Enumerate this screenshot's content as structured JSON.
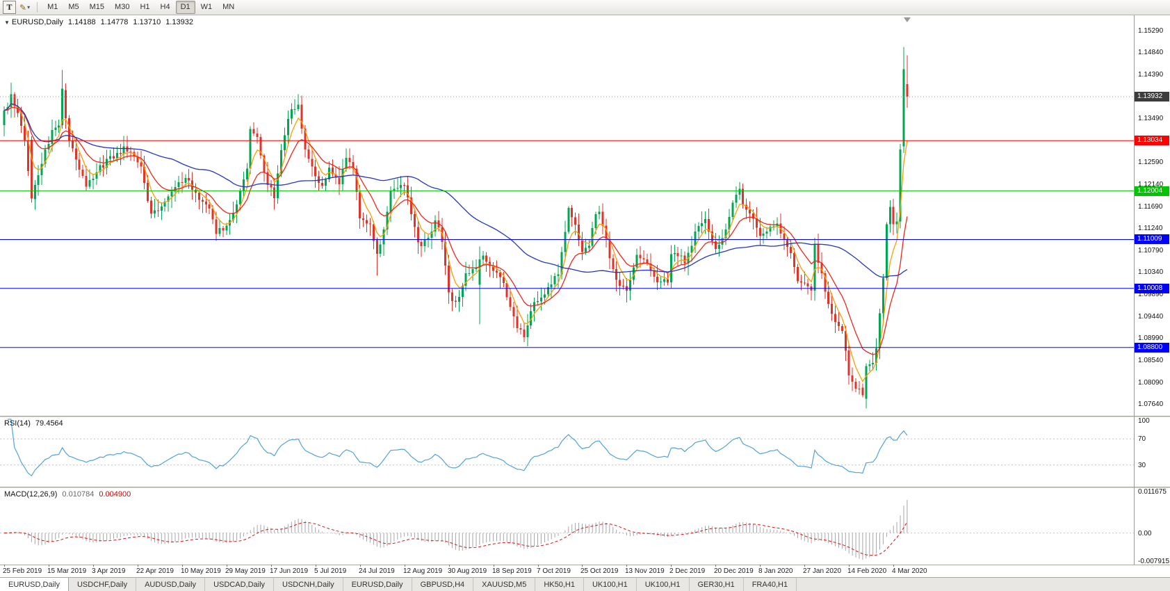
{
  "toolbar": {
    "text_tool_label": "T",
    "pencil_icon": "✎",
    "caret_icon": "▾",
    "timeframes": [
      "M1",
      "M5",
      "M15",
      "M30",
      "H1",
      "H4",
      "D1",
      "W1",
      "MN"
    ],
    "active_timeframe": "D1"
  },
  "chart": {
    "symbol_title": "EURUSD,Daily",
    "open": "1.14188",
    "high": "1.14778",
    "low": "1.13710",
    "close": "1.13932"
  },
  "rsi_panel": {
    "label": "RSI(14)",
    "value": "79.4564",
    "axis_labels": [
      "100",
      "70",
      "30"
    ]
  },
  "macd_panel": {
    "label": "MACD(12,26,9)",
    "main_value": "0.010784",
    "signal_value": "0.004900",
    "axis_labels": [
      "0.011675",
      "0.00",
      "-0.007915"
    ]
  },
  "tabs": [
    "EURUSD,Daily",
    "USDCHF,Daily",
    "AUDUSD,Daily",
    "USDCAD,Daily",
    "USDCNH,Daily",
    "EURUSD,Daily",
    "GBPUSD,H4",
    "XAUUSD,M5",
    "HK50,H1",
    "UK100,H1",
    "UK100,H1",
    "GER30,H1",
    "FRA40,H1"
  ],
  "active_tab": 0,
  "chart_data": {
    "type": "candlestick",
    "title": "EURUSD,Daily",
    "current_ohlc": {
      "open": 1.14188,
      "high": 1.14778,
      "low": 1.1371,
      "close": 1.13932
    },
    "y_axis_ticks": [
      "1.15290",
      "1.14840",
      "1.14390",
      "1.13940",
      "1.13490",
      "1.13040",
      "1.12590",
      "1.12140",
      "1.11690",
      "1.11240",
      "1.10790",
      "1.10340",
      "1.09890",
      "1.09440",
      "1.08990",
      "1.08540",
      "1.08090",
      "1.07640"
    ],
    "price_range": {
      "max": 1.156,
      "min": 1.074
    },
    "x_labels": [
      "25 Feb 2019",
      "15 Mar 2019",
      "3 Apr 2019",
      "22 Apr 2019",
      "10 May 2019",
      "29 May 2019",
      "17 Jun 2019",
      "5 Jul 2019",
      "24 Jul 2019",
      "12 Aug 2019",
      "30 Aug 2019",
      "18 Sep 2019",
      "7 Oct 2019",
      "25 Oct 2019",
      "13 Nov 2019",
      "2 Dec 2019",
      "20 Dec 2019",
      "8 Jan 2020",
      "27 Jan 2020",
      "14 Feb 2020",
      "4 Mar 2020"
    ],
    "candles_per_label": 13,
    "candle_count": 265,
    "close_waypoints": [
      [
        0,
        1.136
      ],
      [
        2,
        1.1392
      ],
      [
        4,
        1.1365
      ],
      [
        6,
        1.1308
      ],
      [
        8,
        1.1185
      ],
      [
        10,
        1.1238
      ],
      [
        14,
        1.1322
      ],
      [
        16,
        1.1338
      ],
      [
        17,
        1.141
      ],
      [
        19,
        1.1298
      ],
      [
        22,
        1.1248
      ],
      [
        24,
        1.1215
      ],
      [
        27,
        1.124
      ],
      [
        31,
        1.1268
      ],
      [
        35,
        1.1288
      ],
      [
        40,
        1.1252
      ],
      [
        43,
        1.115
      ],
      [
        46,
        1.1172
      ],
      [
        49,
        1.1198
      ],
      [
        53,
        1.1228
      ],
      [
        57,
        1.1182
      ],
      [
        60,
        1.1158
      ],
      [
        62,
        1.1115
      ],
      [
        65,
        1.1132
      ],
      [
        68,
        1.1168
      ],
      [
        71,
        1.1248
      ],
      [
        72,
        1.1328
      ],
      [
        74,
        1.1308
      ],
      [
        77,
        1.1212
      ],
      [
        79,
        1.1192
      ],
      [
        81,
        1.1288
      ],
      [
        84,
        1.1368
      ],
      [
        86,
        1.1378
      ],
      [
        88,
        1.1285
      ],
      [
        91,
        1.1225
      ],
      [
        93,
        1.1205
      ],
      [
        95,
        1.1252
      ],
      [
        98,
        1.1215
      ],
      [
        100,
        1.1272
      ],
      [
        102,
        1.1248
      ],
      [
        104,
        1.115
      ],
      [
        105,
        1.1142
      ],
      [
        107,
        1.1132
      ],
      [
        109,
        1.1072
      ],
      [
        110,
        1.1085
      ],
      [
        113,
        1.1198
      ],
      [
        117,
        1.1212
      ],
      [
        121,
        1.1092
      ],
      [
        124,
        1.1098
      ],
      [
        126,
        1.1142
      ],
      [
        128,
        1.1098
      ],
      [
        130,
        1.0992
      ],
      [
        132,
        1.0968
      ],
      [
        135,
        1.1028
      ],
      [
        137,
        1.1038
      ],
      [
        139,
        1.106
      ],
      [
        140,
        1.1068
      ],
      [
        143,
        1.1038
      ],
      [
        146,
        1.1012
      ],
      [
        149,
        1.0938
      ],
      [
        152,
        1.0898
      ],
      [
        155,
        1.0978
      ],
      [
        156,
        1.0968
      ],
      [
        159,
        1.1005
      ],
      [
        162,
        1.1032
      ],
      [
        165,
        1.1168
      ],
      [
        166,
        1.1148
      ],
      [
        169,
        1.1078
      ],
      [
        171,
        1.1088
      ],
      [
        173,
        1.1148
      ],
      [
        174,
        1.1162
      ],
      [
        177,
        1.1068
      ],
      [
        179,
        1.1018
      ],
      [
        182,
        1.1002
      ],
      [
        185,
        1.1068
      ],
      [
        188,
        1.1058
      ],
      [
        191,
        1.1012
      ],
      [
        194,
        1.1018
      ],
      [
        195,
        1.1078
      ],
      [
        199,
        1.1058
      ],
      [
        203,
        1.1128
      ],
      [
        205,
        1.1142
      ],
      [
        208,
        1.1078
      ],
      [
        211,
        1.1118
      ],
      [
        213,
        1.1172
      ],
      [
        215,
        1.1208
      ],
      [
        216,
        1.1168
      ],
      [
        219,
        1.1138
      ],
      [
        221,
        1.1108
      ],
      [
        224,
        1.1128
      ],
      [
        226,
        1.1132
      ],
      [
        229,
        1.1092
      ],
      [
        232,
        1.1022
      ],
      [
        233,
        1.1018
      ],
      [
        236,
        1.1002
      ],
      [
        237,
        1.1092
      ],
      [
        238,
        1.1058
      ],
      [
        240,
        1.0998
      ],
      [
        242,
        1.0942
      ],
      [
        245,
        1.0908
      ],
      [
        247,
        1.0828
      ],
      [
        249,
        1.0798
      ],
      [
        251,
        1.0782
      ],
      [
        252,
        1.0842
      ],
      [
        254,
        1.0848
      ],
      [
        255,
        1.0878
      ],
      [
        257,
        1.1022
      ],
      [
        258,
        1.1132
      ],
      [
        259,
        1.1168
      ],
      [
        260,
        1.1132
      ],
      [
        261,
        1.1138
      ],
      [
        262,
        1.1285
      ],
      [
        263,
        1.145
      ],
      [
        264,
        1.13932
      ]
    ],
    "candle_overrides": {
      "8": [
        1.1305,
        1.1312,
        1.1176,
        1.1185
      ],
      "17": [
        1.1335,
        1.1448,
        1.1328,
        1.141
      ],
      "109": [
        1.11,
        1.1105,
        1.1027,
        1.1072
      ],
      "139": [
        1.1008,
        1.1087,
        1.0927,
        1.106
      ],
      "251": [
        1.0798,
        1.0806,
        1.0778,
        1.0782
      ],
      "263": [
        1.1292,
        1.1495,
        1.1278,
        1.145
      ],
      "264": [
        1.14188,
        1.14778,
        1.1371,
        1.13932
      ]
    },
    "horizontal_lines": [
      {
        "value": 1.13034,
        "label": "1.13034",
        "color": "#ff0000"
      },
      {
        "value": 1.12004,
        "label": "1.12004",
        "color": "#00c400"
      },
      {
        "value": 1.11009,
        "label": "1.11009",
        "color": "#0000ff"
      },
      {
        "value": 1.10008,
        "label": "1.10008",
        "color": "#0000ff"
      },
      {
        "value": 1.088,
        "label": "1.08800",
        "color": "#0000ff"
      }
    ],
    "current_price": {
      "value": 1.13932,
      "label": "1.13932",
      "badge_color": "#3c3c3c"
    },
    "moving_averages": [
      {
        "period": 5,
        "type": "ema",
        "color": "#ff9c00"
      },
      {
        "period": 13,
        "type": "ema",
        "color": "#f02519"
      },
      {
        "period": 50,
        "type": "sma",
        "color": "#2336c4"
      }
    ],
    "candle_colors": {
      "up": "#00a651",
      "down": "#e0342b"
    },
    "rsi": {
      "period": 14,
      "value": 79.4564,
      "color": "#4fa3dc",
      "levels": [
        70,
        30
      ],
      "scale": [
        0,
        100
      ]
    },
    "macd": {
      "fast": 12,
      "slow": 26,
      "signal": 9,
      "value": 0.010784,
      "signal_value": 0.0049,
      "scale_min": -0.007915,
      "scale_max": 0.011675,
      "histogram_color": "#a6a6a6",
      "signal_color": "#e01010"
    }
  }
}
